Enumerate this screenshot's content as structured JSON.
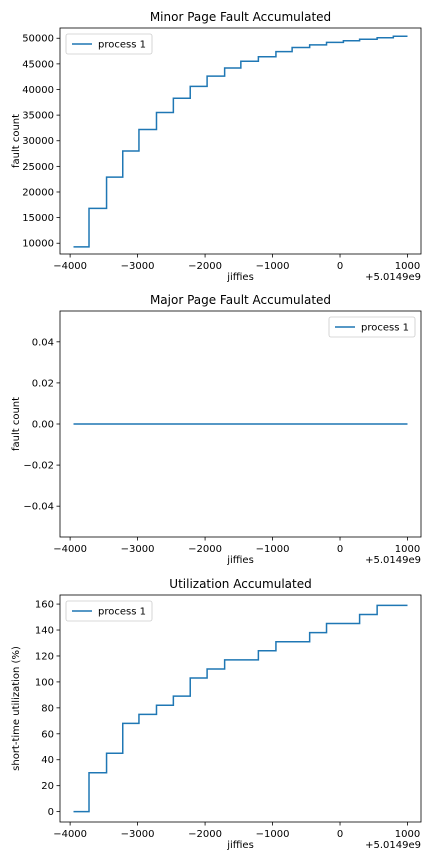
{
  "chart_data": [
    {
      "type": "line",
      "title": "Minor Page Fault Accumulated",
      "xlabel": "jiffies",
      "ylabel": "fault count",
      "x_offset_label": "+5.0149e9",
      "xlim": [
        -4150,
        1200
      ],
      "ylim": [
        7900,
        52000
      ],
      "xticks": [
        -4000,
        -3000,
        -2000,
        -1000,
        0,
        1000
      ],
      "xtick_labels": [
        "−4000",
        "−3000",
        "−2000",
        "−1000",
        "0",
        "1000"
      ],
      "yticks": [
        10000,
        15000,
        20000,
        25000,
        30000,
        35000,
        40000,
        45000,
        50000
      ],
      "ytick_labels": [
        "10000",
        "15000",
        "20000",
        "25000",
        "30000",
        "35000",
        "40000",
        "45000",
        "50000"
      ],
      "legend_position": "upper-left",
      "series": [
        {
          "name": "process 1",
          "color": "#1f77b4",
          "x": [
            -3950,
            -3720,
            -3720,
            -3460,
            -3460,
            -3220,
            -3220,
            -2980,
            -2980,
            -2720,
            -2720,
            -2470,
            -2470,
            -2220,
            -2220,
            -1970,
            -1970,
            -1710,
            -1710,
            -1470,
            -1470,
            -1210,
            -1210,
            -950,
            -950,
            -710,
            -710,
            -450,
            -450,
            -200,
            -200,
            50,
            50,
            290,
            290,
            550,
            550,
            790,
            790,
            1000
          ],
          "y": [
            9300,
            9300,
            16800,
            16800,
            22900,
            22900,
            28000,
            28000,
            32200,
            32200,
            35500,
            35500,
            38300,
            38300,
            40600,
            40600,
            42600,
            42600,
            44200,
            44200,
            45500,
            45500,
            46400,
            46400,
            47400,
            47400,
            48200,
            48200,
            48700,
            48700,
            49200,
            49200,
            49500,
            49500,
            49800,
            49800,
            50100,
            50100,
            50400,
            50400
          ]
        }
      ]
    },
    {
      "type": "line",
      "title": "Major Page Fault Accumulated",
      "xlabel": "jiffies",
      "ylabel": "fault count",
      "x_offset_label": "+5.0149e9",
      "xlim": [
        -4150,
        1200
      ],
      "ylim": [
        -0.055,
        0.055
      ],
      "xticks": [
        -4000,
        -3000,
        -2000,
        -1000,
        0,
        1000
      ],
      "xtick_labels": [
        "−4000",
        "−3000",
        "−2000",
        "−1000",
        "0",
        "1000"
      ],
      "yticks": [
        -0.04,
        -0.02,
        0.0,
        0.02,
        0.04
      ],
      "ytick_labels": [
        "−0.04",
        "−0.02",
        "0.00",
        "0.02",
        "0.04"
      ],
      "legend_position": "upper-right",
      "series": [
        {
          "name": "process 1",
          "color": "#1f77b4",
          "x": [
            -3950,
            1000
          ],
          "y": [
            0,
            0
          ]
        }
      ]
    },
    {
      "type": "line",
      "title": "Utilization Accumulated",
      "xlabel": "jiffies",
      "ylabel": "short-time utilization (%)",
      "x_offset_label": "+5.0149e9",
      "xlim": [
        -4150,
        1200
      ],
      "ylim": [
        -8,
        167
      ],
      "xticks": [
        -4000,
        -3000,
        -2000,
        -1000,
        0,
        1000
      ],
      "xtick_labels": [
        "−4000",
        "−3000",
        "−2000",
        "−1000",
        "0",
        "1000"
      ],
      "yticks": [
        0,
        20,
        40,
        60,
        80,
        100,
        120,
        140,
        160
      ],
      "ytick_labels": [
        "0",
        "20",
        "40",
        "60",
        "80",
        "100",
        "120",
        "140",
        "160"
      ],
      "legend_position": "upper-left",
      "series": [
        {
          "name": "process 1",
          "color": "#1f77b4",
          "x": [
            -3950,
            -3720,
            -3720,
            -3460,
            -3460,
            -3220,
            -3220,
            -2980,
            -2980,
            -2720,
            -2720,
            -2470,
            -2470,
            -2220,
            -2220,
            -1970,
            -1970,
            -1710,
            -1710,
            -1470,
            -1470,
            -1210,
            -1210,
            -950,
            -950,
            -710,
            -710,
            -450,
            -450,
            -200,
            -200,
            50,
            50,
            290,
            290,
            550,
            550,
            790,
            790,
            1000
          ],
          "y": [
            0,
            0,
            30,
            30,
            45,
            45,
            68,
            68,
            75,
            75,
            82,
            82,
            89,
            89,
            103,
            103,
            110,
            110,
            117,
            117,
            117,
            117,
            124,
            124,
            131,
            131,
            131,
            131,
            138,
            138,
            145,
            145,
            145,
            145,
            152,
            152,
            159,
            159,
            159,
            159
          ]
        }
      ]
    }
  ]
}
